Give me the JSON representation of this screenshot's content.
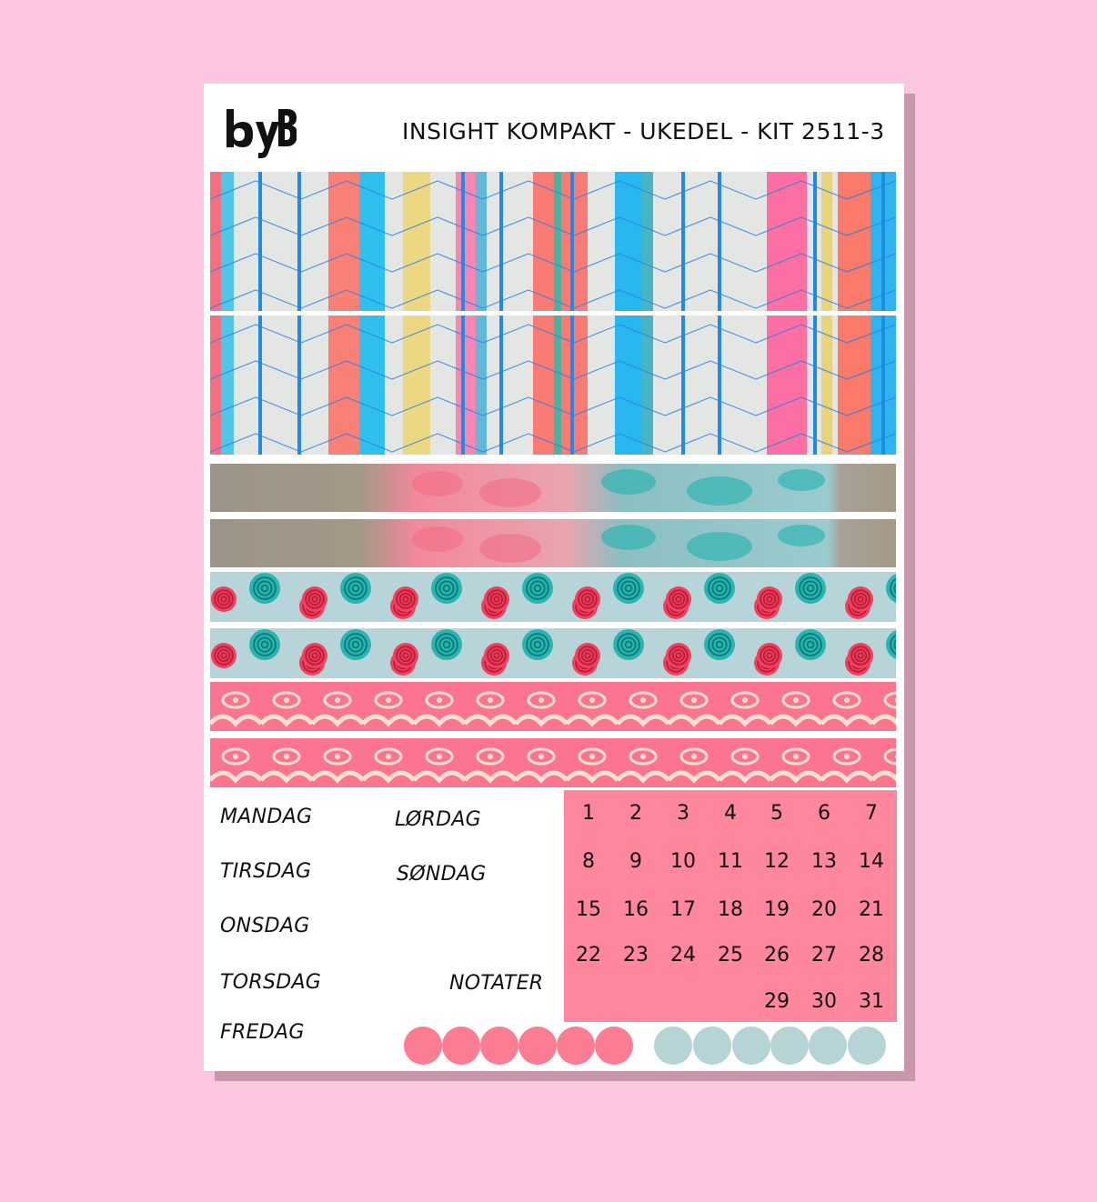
{
  "sheet": {
    "title": "INSIGHT KOMPAKT - UKEDEL - KIT 2511-3",
    "logo_text": "byB"
  },
  "strips": [
    {
      "pattern": "geometric-stripes"
    },
    {
      "pattern": "geometric-stripes"
    },
    {
      "pattern": "butterfly-wash"
    },
    {
      "pattern": "butterfly-wash"
    },
    {
      "pattern": "roses"
    },
    {
      "pattern": "roses"
    },
    {
      "pattern": "damask"
    },
    {
      "pattern": "damask"
    }
  ],
  "days": {
    "monday": "MANDAG",
    "tuesday": "TIRSDAG",
    "wednesday": "ONSDAG",
    "thursday": "TORSDAG",
    "friday": "FREDAG",
    "saturday": "LØRDAG",
    "sunday": "SØNDAG",
    "notes": "NOTATER"
  },
  "calendar": {
    "numbers": [
      "1",
      "2",
      "3",
      "4",
      "5",
      "6",
      "7",
      "8",
      "9",
      "10",
      "11",
      "12",
      "13",
      "14",
      "15",
      "16",
      "17",
      "18",
      "19",
      "20",
      "21",
      "22",
      "23",
      "24",
      "25",
      "26",
      "27",
      "28",
      "29",
      "30",
      "31"
    ]
  },
  "colors": {
    "background": "#fcc6e0",
    "calendar": "#fe879e",
    "pink_dot": "#fb7d93",
    "blue_dot": "#b6d3d6"
  },
  "dots": {
    "pink_count": 6,
    "blue_count": 6
  }
}
